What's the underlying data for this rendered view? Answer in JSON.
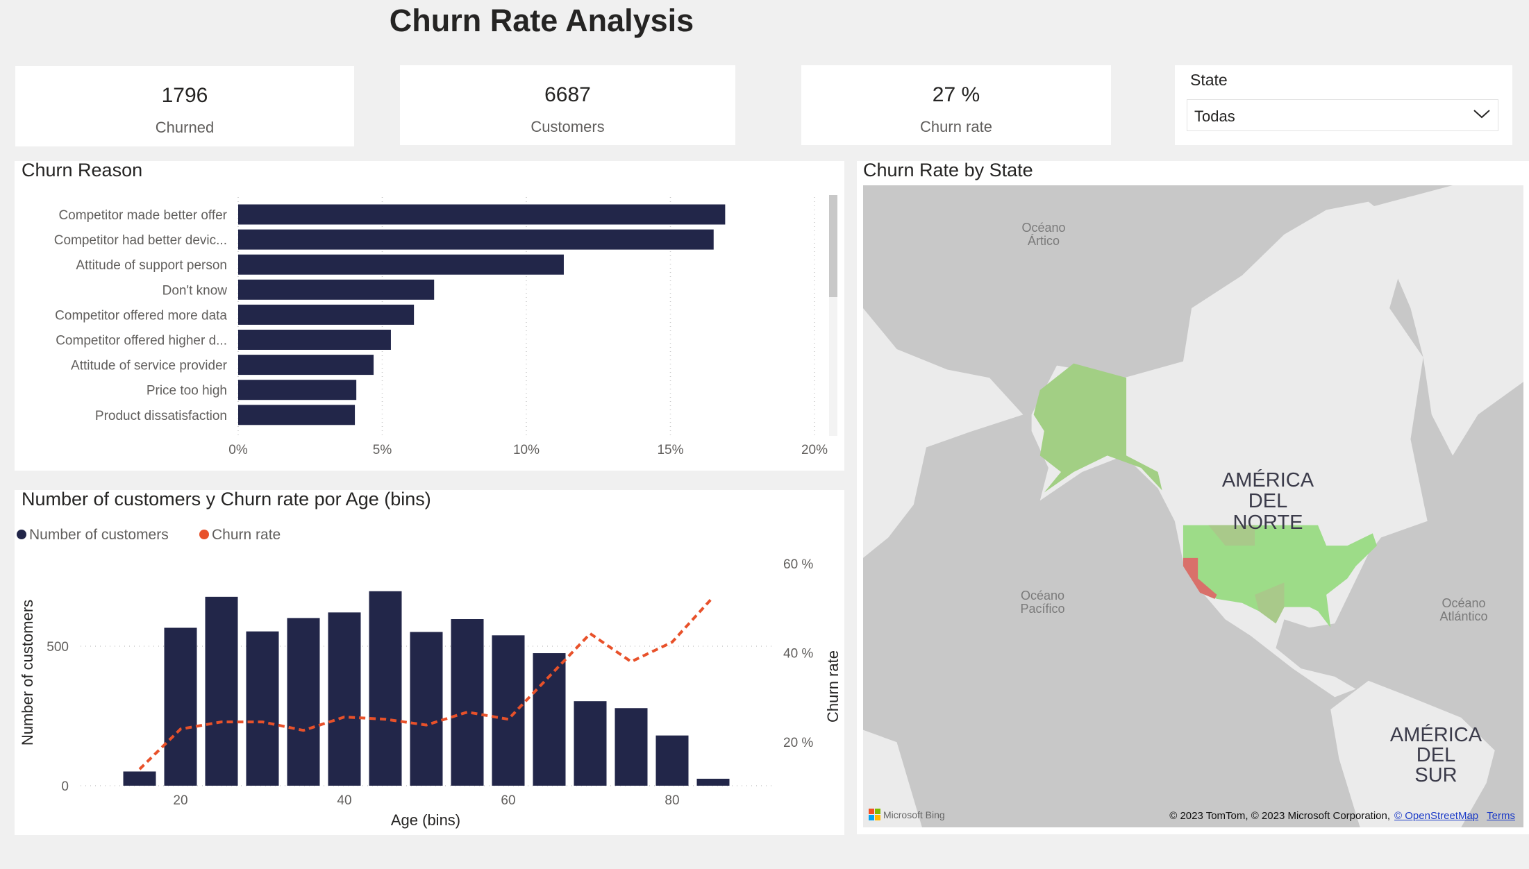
{
  "title": "Churn Rate Analysis",
  "kpis": [
    {
      "value": "1796",
      "label": "Churned"
    },
    {
      "value": "6687",
      "label": "Customers"
    },
    {
      "value": "27 %",
      "label": "Churn rate"
    }
  ],
  "slicer": {
    "title": "State",
    "selected": "Todas",
    "icon": "chevron-down-icon"
  },
  "colors": {
    "bar": "#222649",
    "line": "#e8512a",
    "map_high": "#d9706a",
    "map_low": "#9fd98a"
  },
  "chart_data": [
    {
      "type": "bar",
      "orientation": "horizontal",
      "title": "Churn Reason",
      "categories": [
        "Competitor made better offer",
        "Competitor had better devic...",
        "Attitude of support person",
        "Don't know",
        "Competitor offered more data",
        "Competitor offered higher d...",
        "Attitude of service provider",
        "Price too high",
        "Product dissatisfaction"
      ],
      "values": [
        16.9,
        16.5,
        11.3,
        6.8,
        6.1,
        5.3,
        4.7,
        4.1,
        4.05
      ],
      "xlim": [
        0,
        20
      ],
      "xticks": [
        "0%",
        "5%",
        "10%",
        "15%",
        "20%"
      ],
      "grid": true
    },
    {
      "type": "bar+line",
      "title": "Number of customers y Churn rate por Age (bins)",
      "legend": [
        "Number of customers",
        "Churn rate"
      ],
      "legend_position": "top-left",
      "x": [
        15,
        20,
        25,
        30,
        35,
        40,
        45,
        50,
        55,
        60,
        65,
        70,
        75,
        80,
        85
      ],
      "xlabel": "Age (bins)",
      "xticks": [
        "20",
        "40",
        "60",
        "80"
      ],
      "series": [
        {
          "name": "Number of customers",
          "axis": "left",
          "values": [
            51,
            566,
            677,
            553,
            601,
            621,
            697,
            551,
            597,
            539,
            475,
            303,
            278,
            180,
            25
          ]
        },
        {
          "name": "Churn rate",
          "axis": "right",
          "values": [
            13.9,
            22.9,
            24.5,
            24.5,
            22.6,
            25.6,
            25.1,
            23.8,
            26.7,
            25.1,
            34.7,
            44.3,
            38.0,
            42.4,
            52.5
          ]
        }
      ],
      "ylabel_left": "Number of customers",
      "ylabel_right": "Churn rate",
      "yticks_left": [
        "0",
        "500"
      ],
      "yticks_right": [
        "20 %",
        "40 %",
        "60 %"
      ],
      "ylim_left": [
        0,
        700
      ],
      "ylim_right": [
        10,
        60
      ]
    }
  ],
  "map": {
    "title": "Churn Rate by State",
    "labels": {
      "arctic": [
        "Océano",
        "Ártico"
      ],
      "pacific": [
        "Océano",
        "Pacífico"
      ],
      "atlantic": [
        "Océano",
        "Atlántico"
      ],
      "north_america": [
        "AMÉRICA",
        "DEL",
        "NORTE"
      ],
      "south_america": [
        "AMÉRICA",
        "DEL",
        "SUR"
      ]
    },
    "bing": "Microsoft Bing",
    "attribution": "© 2023 TomTom, © 2023 Microsoft Corporation,",
    "osm_link": "© OpenStreetMap",
    "terms_link": "Terms"
  }
}
